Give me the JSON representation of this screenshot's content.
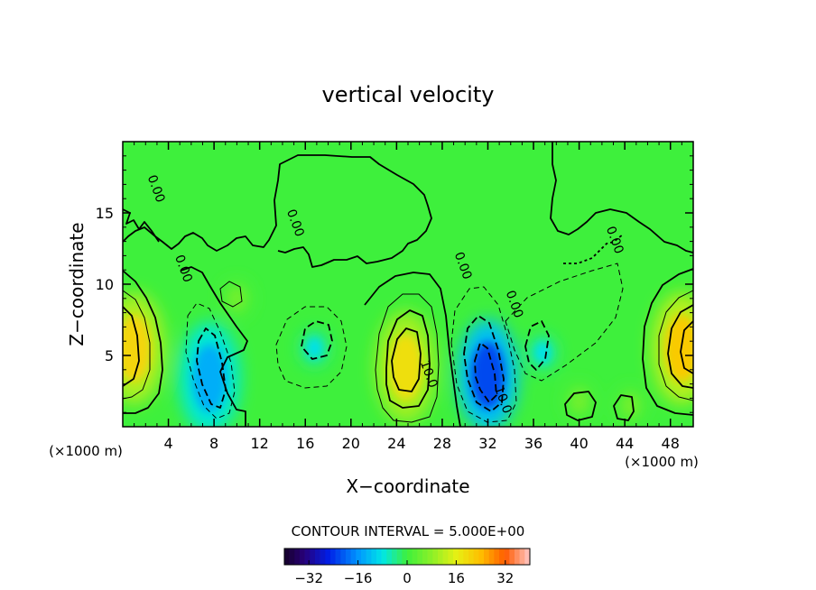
{
  "chart_data": {
    "type": "heatmap",
    "title": "vertical velocity",
    "xlabel": "X−coordinate",
    "ylabel": "Z−coordinate",
    "x_unit_left": "(×1000 m)",
    "x_unit_right": "(×1000 m)",
    "xlim": [
      0,
      50
    ],
    "ylim": [
      0,
      20
    ],
    "x_ticks": [
      4,
      8,
      12,
      16,
      20,
      24,
      28,
      32,
      36,
      40,
      44,
      48
    ],
    "y_ticks": [
      5,
      10,
      15
    ],
    "contour_interval_text": "CONTOUR INTERVAL = 5.000E+00",
    "contour_labels": [
      {
        "text": "0.00",
        "x": 2.6,
        "y": 16.6
      },
      {
        "text": "0.00",
        "x": 14.8,
        "y": 14.2
      },
      {
        "text": "0.00",
        "x": 5.0,
        "y": 11.0
      },
      {
        "text": "0.00",
        "x": 29.5,
        "y": 11.2
      },
      {
        "text": "0.00",
        "x": 34.0,
        "y": 8.5
      },
      {
        "text": "0.00",
        "x": 42.8,
        "y": 13.0
      },
      {
        "text": "10.0",
        "x": 26.5,
        "y": 3.6
      },
      {
        "text": "10.0",
        "x": 33.0,
        "y": 1.8
      }
    ],
    "updraft_cores": [
      {
        "x": 1.0,
        "y": 5.5,
        "peak": 24
      },
      {
        "x": 24.8,
        "y": 4.2,
        "peak": 22
      },
      {
        "x": 49.0,
        "y": 5.5,
        "peak": 26
      },
      {
        "x": 10.0,
        "y": 9.0,
        "peak": 6
      },
      {
        "x": 40.0,
        "y": 1.8,
        "peak": 6
      },
      {
        "x": 44.5,
        "y": 1.5,
        "peak": 6
      }
    ],
    "downdraft_cores": [
      {
        "x": 7.6,
        "y": 3.4,
        "peak": -16
      },
      {
        "x": 16.8,
        "y": 5.5,
        "peak": -10
      },
      {
        "x": 32.0,
        "y": 3.6,
        "peak": -26
      },
      {
        "x": 36.8,
        "y": 5.2,
        "peak": -10
      }
    ],
    "colorbar": {
      "min": -40,
      "max": 40,
      "ticks": [
        -32,
        -16,
        0,
        16,
        32
      ],
      "tick_labels": [
        "−32",
        "−16",
        "0",
        "16",
        "32"
      ]
    },
    "colors": {
      "background_field": "#3ef03c",
      "zero_contour": "#000000"
    }
  }
}
